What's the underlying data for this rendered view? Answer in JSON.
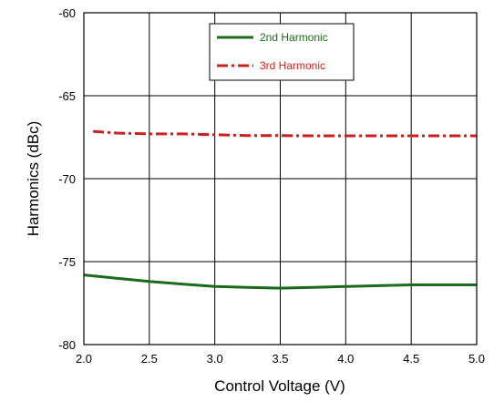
{
  "chart_data": {
    "type": "line",
    "xlabel": "Control Voltage (V)",
    "ylabel": "Harmonics (dBc)",
    "xlim": [
      2.0,
      5.0
    ],
    "ylim": [
      -80,
      -60
    ],
    "xticks": [
      2.0,
      2.5,
      3.0,
      3.5,
      4.0,
      4.5,
      5.0
    ],
    "yticks": [
      -60,
      -65,
      -70,
      -75,
      -80
    ],
    "xtick_labels": [
      "2.0",
      "2.5",
      "3.0",
      "3.5",
      "4.0",
      "4.5",
      "5.0"
    ],
    "ytick_labels": [
      "-60",
      "-65",
      "-70",
      "-75",
      "-80"
    ],
    "grid": true,
    "legend_position": "top-center",
    "series": [
      {
        "name": "2nd Harmonic",
        "color": "#1a6b1a",
        "style": "solid",
        "x": [
          2.0,
          2.25,
          2.5,
          2.75,
          3.0,
          3.25,
          3.5,
          3.75,
          4.0,
          4.25,
          4.5,
          4.75,
          5.0
        ],
        "y": [
          -75.8,
          -76.0,
          -76.2,
          -76.35,
          -76.5,
          -76.55,
          -76.6,
          -76.55,
          -76.5,
          -76.45,
          -76.4,
          -76.4,
          -76.4
        ]
      },
      {
        "name": "3rd Harmonic",
        "color": "#cc1f1f",
        "style": "dashdot",
        "x": [
          2.07,
          2.25,
          2.5,
          2.75,
          3.0,
          3.25,
          3.5,
          3.75,
          4.0,
          4.25,
          4.5,
          4.75,
          5.0
        ],
        "y": [
          -67.15,
          -67.25,
          -67.3,
          -67.3,
          -67.35,
          -67.4,
          -67.4,
          -67.42,
          -67.42,
          -67.42,
          -67.42,
          -67.42,
          -67.42
        ]
      }
    ]
  }
}
